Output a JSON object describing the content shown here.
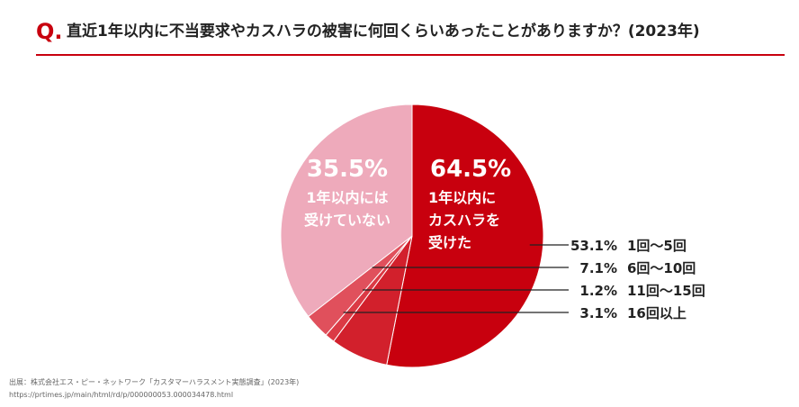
{
  "header": {
    "q_mark": "Q.",
    "title": "直近1年以内に不当要求やカスハラの被害に何回くらいあったことがありますか？(2023年)"
  },
  "chart_data": {
    "type": "pie",
    "start": "12 o'clock, clockwise",
    "slices": [
      {
        "label": "1回〜5回",
        "value": 53.1,
        "value_label": "53.1%",
        "color": "#c8000e"
      },
      {
        "label": "6回〜10回",
        "value": 7.1,
        "value_label": "7.1%",
        "color": "#d2202c"
      },
      {
        "label": "11回〜15回",
        "value": 1.2,
        "value_label": "1.2%",
        "color": "#db3a45"
      },
      {
        "label": "16回以上",
        "value": 3.1,
        "value_label": "3.1%",
        "color": "#e0505c"
      },
      {
        "label": "1年以内には受けていない",
        "value": 35.5,
        "value_label": "35.5%",
        "color": "#eeaabb"
      }
    ],
    "groups": [
      {
        "value_label": "64.5%",
        "text_lines": [
          "1年以内に",
          "カスハラを",
          "受けた"
        ]
      },
      {
        "value_label": "35.5%",
        "text_lines": [
          "1年以内には",
          "受けていない"
        ]
      }
    ]
  },
  "footer": {
    "source": "出展：株式会社エス・ピー・ネットワーク「カスタマーハラスメント実態調査」(2023年)",
    "url": "https://prtimes.jp/main/html/rd/p/000000053.000034478.html"
  }
}
